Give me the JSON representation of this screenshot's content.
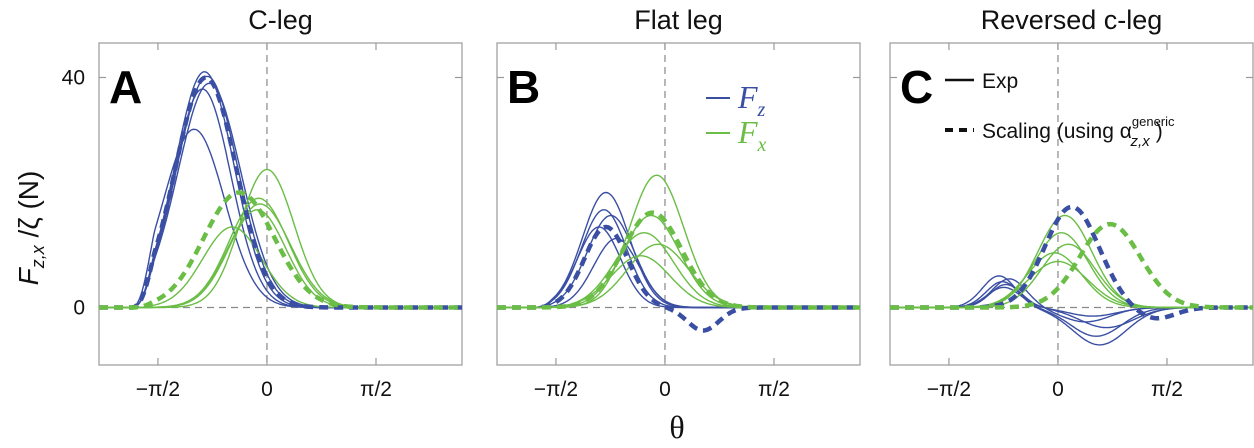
{
  "figure": {
    "ylabel_main": "F",
    "ylabel_sub": "z,x",
    "ylabel_rest": " /ζ (N)",
    "xlabel": "θ",
    "colors": {
      "Fz": "#3a4fa3",
      "Fx": "#6abd45",
      "axis": "#999999",
      "ref": "#888888"
    }
  },
  "legend_B": {
    "fz_main": "F",
    "fz_sub": "z",
    "fx_main": "F",
    "fx_sub": "x"
  },
  "legend_C": {
    "exp_label": "Exp",
    "scaling_label": "Scaling (using α",
    "scaling_sup": "generic",
    "scaling_sub": "z,x",
    "scaling_close": ")"
  },
  "chart_data": [
    {
      "type": "line",
      "letter": "A",
      "title": "C-leg",
      "xlabel": "θ",
      "ylabel": "F_{z,x} /ζ (N)",
      "xlim": [
        -2.42,
        2.81
      ],
      "ylim": [
        -10,
        46
      ],
      "xticks": [
        -1.5708,
        0,
        1.5708
      ],
      "xtick_labels": [
        "−π/2",
        "0",
        "π/2"
      ],
      "yticks": [
        0,
        40
      ],
      "ytick_labels": [
        "0",
        "40"
      ],
      "series": [
        {
          "name": "Fz exp 1",
          "kind": "Fz",
          "style": "solid",
          "peak": 41.0,
          "center": -0.9,
          "width": 0.6
        },
        {
          "name": "Fz exp 2",
          "kind": "Fz",
          "style": "solid",
          "peak": 40.2,
          "center": -0.86,
          "width": 0.62
        },
        {
          "name": "Fz exp 3",
          "kind": "Fz",
          "style": "solid",
          "peak": 39.0,
          "center": -0.83,
          "width": 0.64
        },
        {
          "name": "Fz exp 4",
          "kind": "Fz",
          "style": "solid",
          "peak": 38.0,
          "center": -0.93,
          "width": 0.58
        },
        {
          "name": "Fz exp 5",
          "kind": "Fz",
          "style": "solid",
          "peak": 31.0,
          "center": -1.05,
          "width": 0.62
        },
        {
          "name": "Fz scaling",
          "kind": "Fz",
          "style": "dashed",
          "peak": 40.0,
          "center": -0.88,
          "width": 0.62
        },
        {
          "name": "Fx exp 1",
          "kind": "Fx",
          "style": "solid",
          "peak": 24.0,
          "center": 0.0,
          "width": 0.55
        },
        {
          "name": "Fx exp 2",
          "kind": "Fx",
          "style": "solid",
          "peak": 19.0,
          "center": -0.12,
          "width": 0.6
        },
        {
          "name": "Fx exp 3",
          "kind": "Fx",
          "style": "solid",
          "peak": 18.0,
          "center": -0.1,
          "width": 0.62
        },
        {
          "name": "Fx exp 4",
          "kind": "Fx",
          "style": "solid",
          "peak": 17.0,
          "center": -0.14,
          "width": 0.58
        },
        {
          "name": "Fx exp 5",
          "kind": "Fx",
          "style": "solid",
          "peak": 14.0,
          "center": -0.5,
          "width": 0.6
        },
        {
          "name": "Fx scaling",
          "kind": "Fx",
          "style": "dashed",
          "peak": 20.0,
          "center": -0.4,
          "width": 0.72
        }
      ]
    },
    {
      "type": "line",
      "letter": "B",
      "title": "Flat leg",
      "xlabel": "θ",
      "xlim": [
        -2.42,
        2.81
      ],
      "ylim": [
        -10,
        46
      ],
      "xticks": [
        -1.5708,
        0,
        1.5708
      ],
      "xtick_labels": [
        "−π/2",
        "0",
        "π/2"
      ],
      "series": [
        {
          "name": "Fz exp 1",
          "kind": "Fz",
          "style": "solid",
          "peak": 20.0,
          "center": -0.85,
          "width": 0.48
        },
        {
          "name": "Fz exp 2",
          "kind": "Fz",
          "style": "solid",
          "peak": 17.0,
          "center": -0.88,
          "width": 0.46
        },
        {
          "name": "Fz exp 3",
          "kind": "Fz",
          "style": "solid",
          "peak": 16.0,
          "center": -0.78,
          "width": 0.48
        },
        {
          "name": "Fz exp 4",
          "kind": "Fz",
          "style": "solid",
          "peak": 14.0,
          "center": -0.95,
          "width": 0.44
        },
        {
          "name": "Fz exp 5",
          "kind": "Fz",
          "style": "solid",
          "peak": 12.0,
          "center": -0.7,
          "width": 0.46
        },
        {
          "name": "Fz scaling",
          "kind": "Fz",
          "style": "dashed",
          "peak": 14.0,
          "center": -0.85,
          "width": 0.44,
          "neg": -4.0,
          "neg_center": 0.55,
          "neg_width": 0.32
        },
        {
          "name": "Fx exp 1",
          "kind": "Fx",
          "style": "solid",
          "peak": 23.0,
          "center": -0.12,
          "width": 0.55
        },
        {
          "name": "Fx exp 2",
          "kind": "Fx",
          "style": "solid",
          "peak": 16.0,
          "center": -0.2,
          "width": 0.58
        },
        {
          "name": "Fx exp 3",
          "kind": "Fx",
          "style": "solid",
          "peak": 13.0,
          "center": -0.3,
          "width": 0.6
        },
        {
          "name": "Fx exp 4",
          "kind": "Fx",
          "style": "solid",
          "peak": 11.0,
          "center": -0.1,
          "width": 0.62
        },
        {
          "name": "Fx exp 5",
          "kind": "Fx",
          "style": "solid",
          "peak": 9.0,
          "center": -0.35,
          "width": 0.6
        },
        {
          "name": "Fx scaling",
          "kind": "Fx",
          "style": "dashed",
          "peak": 16.5,
          "center": -0.18,
          "width": 0.6
        }
      ]
    },
    {
      "type": "line",
      "letter": "C",
      "title": "Reversed c-leg",
      "xlabel": "θ",
      "xlim": [
        -2.42,
        2.81
      ],
      "ylim": [
        -10,
        46
      ],
      "xticks": [
        -1.5708,
        0,
        1.5708
      ],
      "xtick_labels": [
        "−π/2",
        "0",
        "π/2"
      ],
      "series": [
        {
          "name": "Fz exp 1",
          "kind": "Fz",
          "style": "solid",
          "peak": 5.5,
          "center": -0.85,
          "width": 0.34,
          "neg": -6.5,
          "neg_center": 0.6,
          "neg_width": 0.55
        },
        {
          "name": "Fz exp 2",
          "kind": "Fz",
          "style": "solid",
          "peak": 4.5,
          "center": -0.8,
          "width": 0.33,
          "neg": -5.0,
          "neg_center": 0.55,
          "neg_width": 0.52
        },
        {
          "name": "Fz exp 3",
          "kind": "Fz",
          "style": "solid",
          "peak": 4.0,
          "center": -0.75,
          "width": 0.32,
          "neg": -3.5,
          "neg_center": 0.7,
          "neg_width": 0.55
        },
        {
          "name": "Fz exp 4",
          "kind": "Fz",
          "style": "solid",
          "peak": 5.0,
          "center": -0.7,
          "width": 0.35,
          "neg": -2.5,
          "neg_center": 0.4,
          "neg_width": 0.5
        },
        {
          "name": "Fz exp 5",
          "kind": "Fz",
          "style": "solid",
          "peak": 3.5,
          "center": -0.78,
          "width": 0.34,
          "neg": -1.5,
          "neg_center": 0.5,
          "neg_width": 0.5
        },
        {
          "name": "Fz scaling",
          "kind": "Fz",
          "style": "dashed",
          "peak": 17.5,
          "center": 0.2,
          "width": 0.55,
          "neg": -2.0,
          "neg_center": 1.4,
          "neg_width": 0.4
        },
        {
          "name": "Fx exp 1",
          "kind": "Fx",
          "style": "solid",
          "peak": 16.0,
          "center": 0.1,
          "width": 0.55
        },
        {
          "name": "Fx exp 2",
          "kind": "Fx",
          "style": "solid",
          "peak": 13.0,
          "center": 0.05,
          "width": 0.55
        },
        {
          "name": "Fx exp 3",
          "kind": "Fx",
          "style": "solid",
          "peak": 11.0,
          "center": 0.15,
          "width": 0.55
        },
        {
          "name": "Fx exp 4",
          "kind": "Fx",
          "style": "solid",
          "peak": 9.5,
          "center": -0.05,
          "width": 0.55
        },
        {
          "name": "Fx exp 5",
          "kind": "Fx",
          "style": "solid",
          "peak": 8.0,
          "center": 0.0,
          "width": 0.6
        },
        {
          "name": "Fx scaling",
          "kind": "Fx",
          "style": "dashed",
          "peak": 14.5,
          "center": 0.75,
          "width": 0.62
        }
      ]
    }
  ]
}
